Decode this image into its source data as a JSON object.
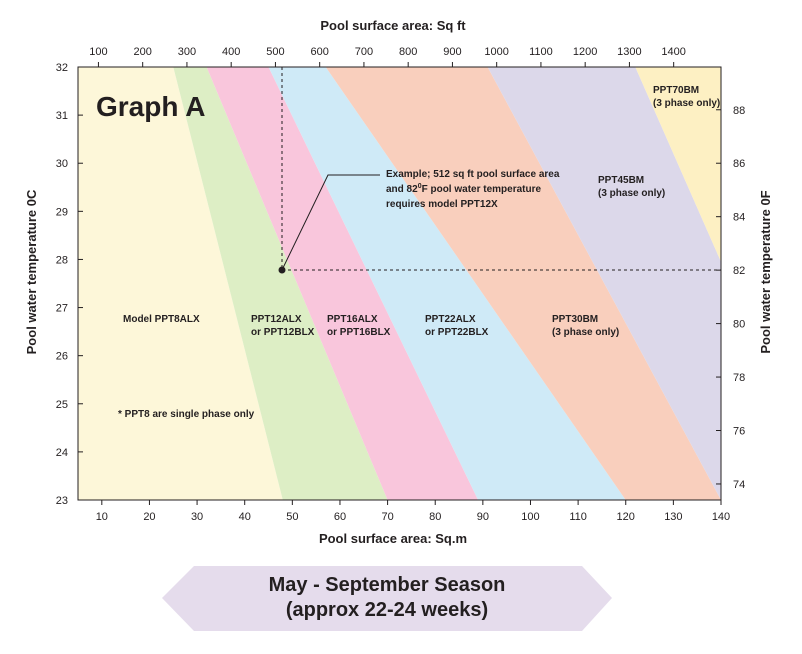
{
  "chart_data": {
    "type": "area",
    "title": "Graph A",
    "x_bottom": {
      "label": "Pool surface area: Sq.m",
      "range": [
        5,
        140
      ],
      "ticks": [
        10,
        20,
        30,
        40,
        50,
        60,
        70,
        80,
        90,
        100,
        110,
        120,
        130,
        140
      ]
    },
    "x_top": {
      "label": "Pool surface area: Sq ft",
      "ticks": [
        100,
        200,
        300,
        400,
        500,
        600,
        700,
        800,
        900,
        1000,
        1100,
        1200,
        1300,
        1400
      ]
    },
    "y_left": {
      "label": "Pool water temperature 0C",
      "range": [
        23,
        32
      ],
      "ticks": [
        23,
        24,
        25,
        26,
        27,
        28,
        29,
        30,
        31,
        32
      ]
    },
    "y_right": {
      "label": "Pool water temperature 0F",
      "ticks": [
        74,
        76,
        78,
        80,
        82,
        84,
        86,
        88
      ]
    },
    "regions": [
      {
        "name": "Model PPT8ALX",
        "color": "#fdf7d9",
        "boundary_top_x": 25,
        "boundary_bottom_x": 48
      },
      {
        "name": "PPT12ALX or PPT12BLX",
        "color": "#ddeec5",
        "boundary_top_x": 32,
        "boundary_bottom_x": 70
      },
      {
        "name": "PPT16ALX or PPT16BLX",
        "color": "#f9c6dc",
        "boundary_top_x": 45,
        "boundary_bottom_x": 89
      },
      {
        "name": "PPT22ALX or PPT22BLX",
        "color": "#cfeaf7",
        "boundary_top_x": 57,
        "boundary_bottom_x": 120
      },
      {
        "name": "PPT30BM (3 phase only)",
        "color": "#f9cfbd",
        "boundary_top_x": 91,
        "boundary_bottom_x": 140
      },
      {
        "name": "PPT45BM (3 phase only)",
        "color": "#dcd8ea",
        "boundary_top_x": 122,
        "boundary_bottom_x": 162
      },
      {
        "name": "PPT70BM (3 phase only)",
        "color": "#fdf0c3"
      }
    ],
    "example_point": {
      "x_sqm": 47.6,
      "y_c": 27.8
    }
  },
  "labels": {
    "graph_title": "Graph A",
    "top_axis_title": "Pool surface area: Sq ft",
    "bottom_axis_title": "Pool surface area: Sq.m",
    "left_axis_title": "Pool water temperature 0C",
    "right_axis_title": "Pool water temperature 0F",
    "ppt8_line1": "Model PPT8ALX",
    "ppt12_line1": "PPT12ALX",
    "ppt12_line2": "or PPT12BLX",
    "ppt16_line1": "PPT16ALX",
    "ppt16_line2": "or PPT16BLX",
    "ppt22_line1": "PPT22ALX",
    "ppt22_line2": "or PPT22BLX",
    "ppt30_line1": "PPT30BM",
    "ppt30_line2": "(3 phase only)",
    "ppt45_line1": "PPT45BM",
    "ppt45_line2": "(3 phase only)",
    "ppt70_line1": "PPT70BM",
    "ppt70_line2": "(3 phase only)",
    "ppt8_note": "* PPT8 are single phase only",
    "example_line1": "Example; 512 sq ft pool surface area",
    "example_line2_pre": "and 82",
    "example_line2_sup": "0",
    "example_line2_post": "F pool water temperature",
    "example_line3": "requires model PPT12X"
  },
  "banner": {
    "line1": "May - September Season",
    "line2": "(approx 22-24 weeks)",
    "color": "#e5dcec"
  }
}
